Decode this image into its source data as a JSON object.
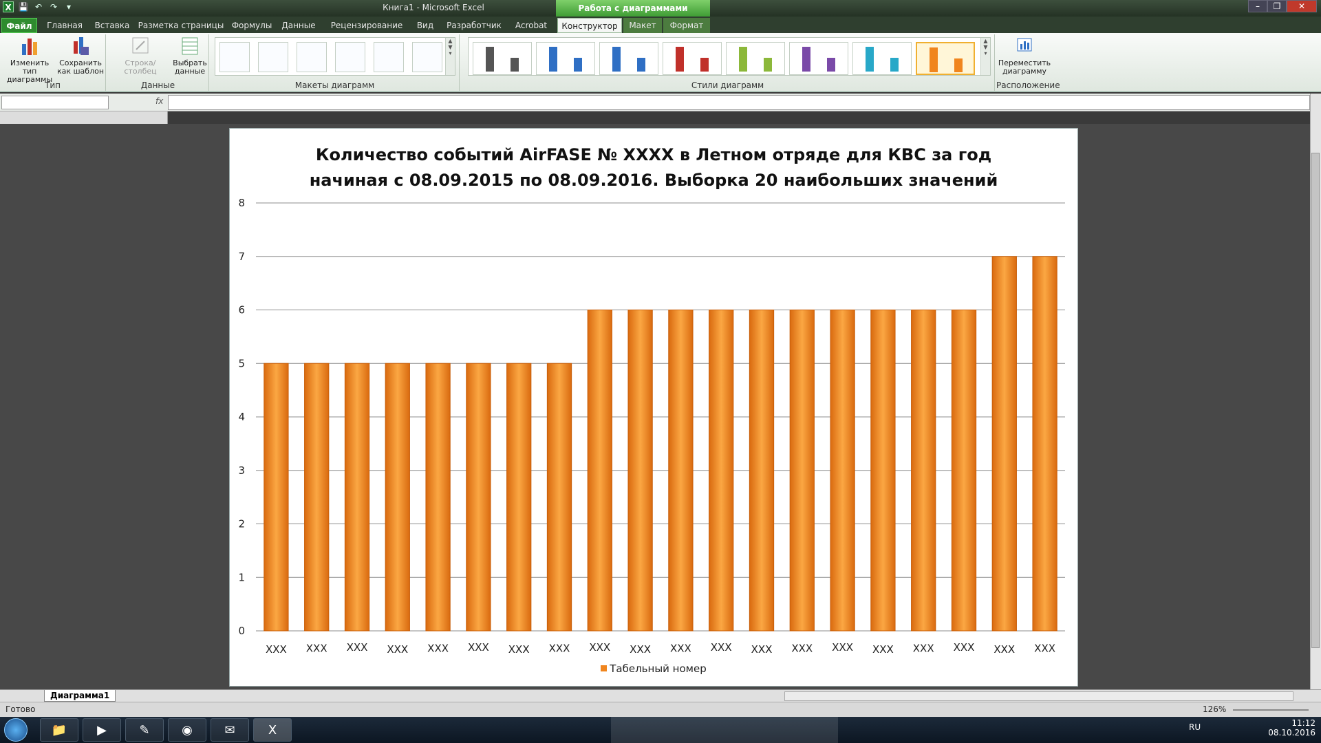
{
  "window": {
    "title": "Книга1 - Microsoft Excel",
    "context_title": "Работа с диаграммами"
  },
  "tabs": [
    "Файл",
    "Главная",
    "Вставка",
    "Разметка страницы",
    "Формулы",
    "Данные",
    "Рецензирование",
    "Вид",
    "Разработчик",
    "Acrobat",
    "Конструктор",
    "Макет",
    "Формат"
  ],
  "ribbon": {
    "change_type": "Изменить тип диаграммы",
    "save_template": "Сохранить как шаблон",
    "group_type": "Тип",
    "row_col": "Строка/столбец",
    "select_data": "Выбрать данные",
    "group_data": "Данные",
    "group_layouts": "Макеты диаграмм",
    "group_styles": "Стили диаграмм",
    "move_chart": "Переместить диаграмму",
    "group_location": "Расположение",
    "style_colors": [
      "#555555",
      "#2f6fc4",
      "#2f6fc4",
      "#c0302a",
      "#8cb83a",
      "#7a4aa8",
      "#28a8c8",
      "#f0851e"
    ]
  },
  "formula_bar": {
    "name_box": "",
    "fx": "fx",
    "value": ""
  },
  "chart_data": {
    "type": "bar",
    "title_line1": "Количество событий AirFASE № XXXX  в Летном отряде для КВС за год",
    "title_line2": "начиная с 08.09.2015  по 08.09.2016.  Выборка 20 наибольших значений",
    "categories": [
      "XXX",
      "XXX",
      "XXX",
      "XXX",
      "XXX",
      "XXX",
      "XXX",
      "XXX",
      "XXX",
      "XXX",
      "XXX",
      "XXX",
      "XXX",
      "XXX",
      "XXX",
      "XXX",
      "XXX",
      "XXX",
      "XXX",
      "XXX"
    ],
    "series": [
      {
        "name": "Табельный номер",
        "values": [
          5,
          5,
          5,
          5,
          5,
          5,
          5,
          5,
          6,
          6,
          6,
          6,
          6,
          6,
          6,
          6,
          6,
          6,
          7,
          7
        ]
      }
    ],
    "ylim": [
      0,
      8
    ],
    "yticks": [
      0,
      1,
      2,
      3,
      4,
      5,
      6,
      7,
      8
    ],
    "grid": true,
    "legend_position": "bottom",
    "bar_color": "#f0851e"
  },
  "sheet": {
    "tab": "Диаграмма1"
  },
  "status": {
    "ready": "Готово",
    "zoom": "126%"
  },
  "taskbar": {
    "lang": "RU",
    "time": "11:12",
    "date": "08.10.2016"
  }
}
